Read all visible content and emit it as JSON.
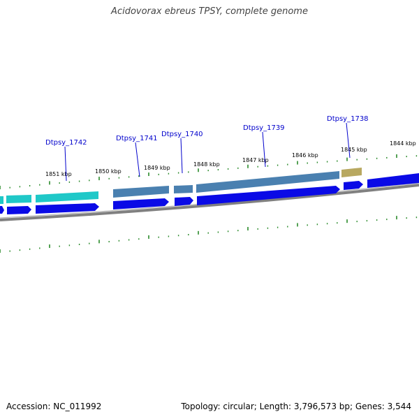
{
  "title": "Acidovorax ebreus TPSY, complete genome",
  "footer": {
    "accession": "Accession: NC_011992",
    "summary": "Topology: circular; Length: 3,796,573 bp; Genes: 3,544"
  },
  "colors": {
    "backbone": "#808080",
    "tick": "#2a8a2a",
    "cds": "#0a0ae6",
    "gene_cyan": "#1fc8c8",
    "gene_steel": "#4a80b0",
    "gene_olive": "#b8a860",
    "label": "#0000cc"
  },
  "ruler_labels": [
    {
      "text": "1851 kbp"
    },
    {
      "text": "1850 kbp"
    },
    {
      "text": "1849 kbp"
    },
    {
      "text": "1848 kbp"
    },
    {
      "text": "1847 kbp"
    },
    {
      "text": "1846 kbp"
    },
    {
      "text": "1845 kbp"
    },
    {
      "text": "1844 kbp"
    }
  ],
  "gene_labels": [
    {
      "text": "Dtpsy_1742"
    },
    {
      "text": "Dtpsy_1741"
    },
    {
      "text": "Dtpsy_1740"
    },
    {
      "text": "Dtpsy_1739"
    },
    {
      "text": "Dtpsy_1738"
    }
  ]
}
